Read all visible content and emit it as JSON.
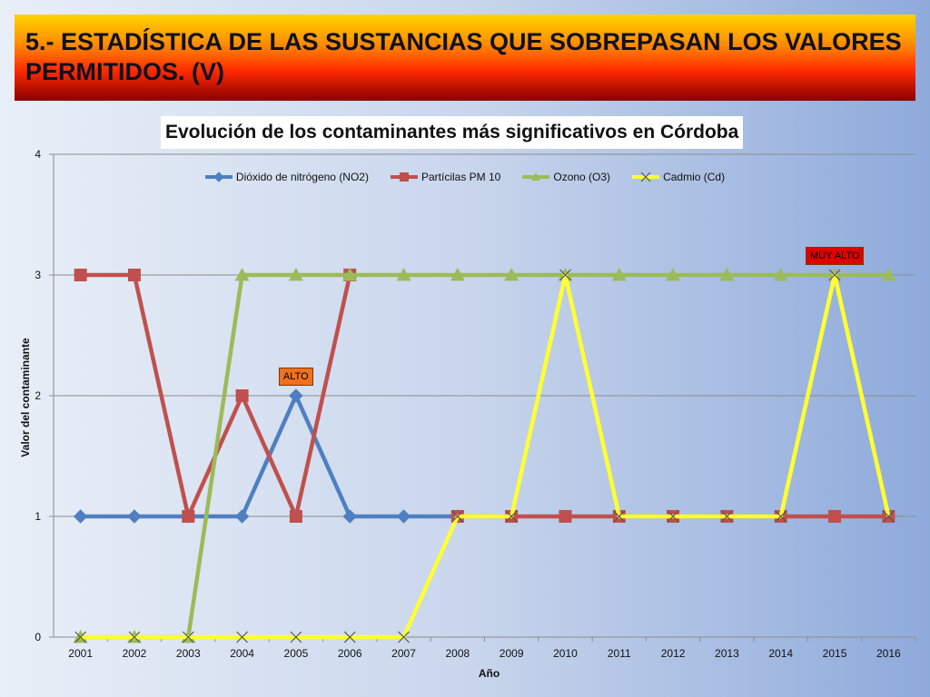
{
  "slide": {
    "title": "5.- ESTADÍSTICA DE LAS SUSTANCIAS QUE SOBREPASAN LOS VALORES PERMITIDOS. (V)"
  },
  "colors": {
    "no2": "#4f7fc0",
    "pm10": "#c0504d",
    "o3": "#9bbb59",
    "cd": "#ffff33",
    "alto_box": "#f07020",
    "muy_alto_box": "#e00000"
  },
  "chart_data": {
    "type": "line",
    "title": "Evolución  de los contaminantes más significativos en Córdoba",
    "xlabel": "Año",
    "ylabel": "Valor del contaminante",
    "ylim": [
      0,
      4
    ],
    "yticks": [
      "0",
      "1",
      "2",
      "3",
      "4"
    ],
    "grid": true,
    "legend_position": "top",
    "categories": [
      "2001",
      "2002",
      "2003",
      "2004",
      "2005",
      "2006",
      "2007",
      "2008",
      "2009",
      "2010",
      "2011",
      "2012",
      "2013",
      "2014",
      "2015",
      "2016"
    ],
    "series": [
      {
        "name": "Dióxido de nitrógeno (NO2)",
        "color": "#4f7fc0",
        "marker": "diamond",
        "values": [
          1,
          1,
          1,
          1,
          2,
          1,
          1,
          1,
          null,
          null,
          null,
          null,
          null,
          null,
          null,
          null
        ]
      },
      {
        "name": "Partícilas PM 10",
        "color": "#c0504d",
        "marker": "square",
        "values": [
          3,
          3,
          1,
          2,
          1,
          3,
          null,
          1,
          1,
          1,
          1,
          1,
          1,
          1,
          1,
          1
        ]
      },
      {
        "name": "Ozono (O3)",
        "color": "#9bbb59",
        "marker": "triangle",
        "values": [
          0,
          0,
          0,
          3,
          3,
          3,
          3,
          3,
          3,
          3,
          3,
          3,
          3,
          3,
          3,
          3
        ]
      },
      {
        "name": "Cadmio (Cd)",
        "color": "#ffff33",
        "marker": "x",
        "values": [
          0,
          0,
          0,
          0,
          0,
          0,
          0,
          1,
          1,
          3,
          1,
          1,
          1,
          1,
          3,
          1
        ]
      }
    ],
    "annotations": [
      {
        "text": "ALTO",
        "category": "2005",
        "value": 2,
        "color": "#f07020"
      },
      {
        "text": "MUY ALTO",
        "category": "2015",
        "value": 3,
        "color": "#e00000"
      }
    ]
  }
}
